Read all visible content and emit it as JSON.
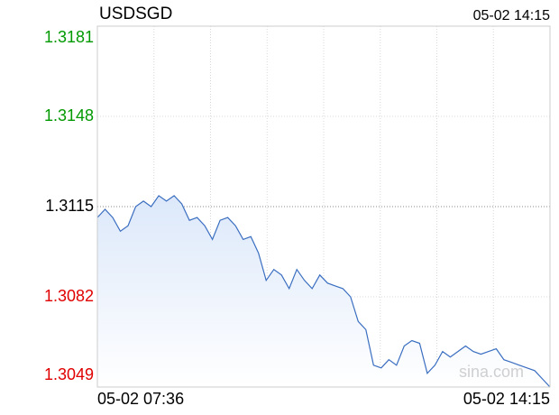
{
  "chart_data": {
    "type": "line",
    "title": "USDSGD",
    "timestamp": "05-02 14:15",
    "watermark": "sina.com",
    "categories": [
      "05-02 07:36",
      null,
      null,
      null,
      null,
      null,
      null,
      null,
      null,
      null,
      null,
      null,
      null,
      null,
      null,
      null,
      null,
      null,
      null,
      null,
      null,
      null,
      null,
      null,
      null,
      null,
      null,
      null,
      null,
      null,
      null,
      null,
      null,
      null,
      null,
      null,
      null,
      null,
      null,
      null,
      null,
      null,
      null,
      null,
      null,
      null,
      null,
      null,
      null,
      null,
      null,
      null,
      null,
      null,
      null,
      null,
      null,
      null,
      null,
      "05-02 14:15"
    ],
    "series": [
      {
        "name": "USDSGD",
        "color": "#3a6ec0",
        "values": [
          1.3111,
          1.3114,
          1.3111,
          1.3106,
          1.3108,
          1.3115,
          1.3117,
          1.3115,
          1.3119,
          1.3117,
          1.3119,
          1.3116,
          1.311,
          1.3111,
          1.3108,
          1.3103,
          1.311,
          1.3111,
          1.3108,
          1.3103,
          1.3104,
          1.3098,
          1.3088,
          1.3092,
          1.309,
          1.3085,
          1.3092,
          1.3088,
          1.3085,
          1.309,
          1.3087,
          1.3086,
          1.3085,
          1.3082,
          1.3073,
          1.307,
          1.3057,
          1.3056,
          1.3059,
          1.3057,
          1.3064,
          1.3066,
          1.3065,
          1.3054,
          1.3057,
          1.3062,
          1.306,
          1.3062,
          1.3064,
          1.3062,
          1.3061,
          1.3062,
          1.3063,
          1.3059,
          1.3058,
          1.3057,
          1.3056,
          1.3055,
          1.3052,
          1.3049
        ]
      }
    ],
    "ylim": [
      1.3049,
      1.3181
    ],
    "yticks": [
      1.3049,
      1.3082,
      1.3115,
      1.3148,
      1.3181
    ],
    "ytick_colors": [
      "#e00000",
      "#e00000",
      "#000000",
      "#009900",
      "#009900"
    ],
    "grid": true
  }
}
